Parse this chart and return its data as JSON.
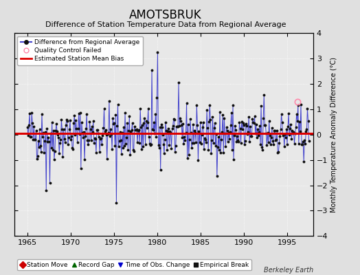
{
  "title": "AMOTSBRUK",
  "subtitle": "Difference of Station Temperature Data from Regional Average",
  "ylabel": "Monthly Temperature Anomaly Difference (°C)",
  "xlabel_ticks": [
    1965,
    1970,
    1975,
    1980,
    1985,
    1990,
    1995
  ],
  "yticks": [
    -4,
    -3,
    -2,
    -1,
    0,
    1,
    2,
    3,
    4
  ],
  "ylim": [
    -4,
    4
  ],
  "xlim": [
    1963.5,
    1998.0
  ],
  "bg_color": "#e0e0e0",
  "plot_bg_color": "#e8e8e8",
  "bias_line_color": "#dd0000",
  "bias_value": 0.04,
  "line_color": "#4444cc",
  "marker_color": "#111111",
  "qc_fail_color": "#ff88aa",
  "watermark": "Berkeley Earth",
  "seed": 42,
  "title_fontsize": 12,
  "subtitle_fontsize": 8,
  "tick_fontsize": 8,
  "ylabel_fontsize": 7
}
